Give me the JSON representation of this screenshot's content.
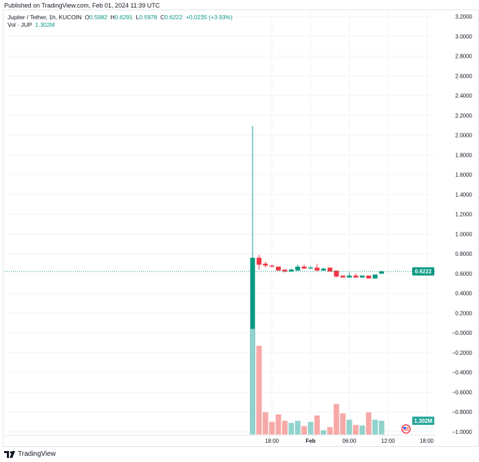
{
  "published": "Published on TradingView.com, Feb 01, 2024 11:39 UTC",
  "legend": {
    "symbol": "Jupiter / Tether, 1h, KUCOIN",
    "o_label": "O",
    "o": "0.5982",
    "h_label": "H",
    "h": "0.6291",
    "l_label": "L",
    "l": "0.5978",
    "c_label": "C",
    "c": "0.6222",
    "change": "+0.0235 (+3.93%)",
    "vol_label": "Vol · JUP",
    "vol": "1.302M"
  },
  "footer": {
    "brand": "TradingView"
  },
  "colors": {
    "up": "#089981",
    "down": "#f23645",
    "vol_up": "#92d2cc",
    "vol_down": "#f7a9a7"
  },
  "chart_data": {
    "type": "candlestick",
    "title": "Jupiter / Tether, 1h, KUCOIN",
    "y_ticks": [
      "3.2000",
      "3.0000",
      "2.8000",
      "2.6000",
      "2.4000",
      "2.2000",
      "2.0000",
      "1.8000",
      "1.6000",
      "1.4000",
      "1.2000",
      "1.0000",
      "0.8000",
      "0.6000",
      "0.4000",
      "0.2000",
      "−0.0000",
      "−0.2000",
      "−0.4000",
      "−0.6000",
      "−0.8000",
      "−1.0000"
    ],
    "ylim": [
      -1.0,
      3.2
    ],
    "x_ticks": [
      "18:00",
      "Feb",
      "06:00",
      "12:00",
      "18:00"
    ],
    "x_tick_hours": [
      18,
      24,
      30,
      36,
      42
    ],
    "first_hour": 15,
    "last_price_label": "0.6222",
    "last_volume_label": "1.302M",
    "candles": [
      [
        0.04,
        2.09,
        0.04,
        0.76
      ],
      [
        0.76,
        0.79,
        0.64,
        0.69
      ],
      [
        0.7,
        0.72,
        0.66,
        0.68
      ],
      [
        0.68,
        0.69,
        0.66,
        0.67
      ],
      [
        0.67,
        0.67,
        0.63,
        0.63
      ],
      [
        0.64,
        0.64,
        0.61,
        0.62
      ],
      [
        0.62,
        0.65,
        0.62,
        0.64
      ],
      [
        0.63,
        0.69,
        0.63,
        0.67
      ],
      [
        0.67,
        0.69,
        0.65,
        0.65
      ],
      [
        0.65,
        0.68,
        0.65,
        0.66
      ],
      [
        0.66,
        0.7,
        0.62,
        0.63
      ],
      [
        0.63,
        0.66,
        0.63,
        0.65
      ],
      [
        0.66,
        0.66,
        0.62,
        0.62
      ],
      [
        0.63,
        0.63,
        0.56,
        0.57
      ],
      [
        0.58,
        0.58,
        0.56,
        0.56
      ],
      [
        0.56,
        0.61,
        0.56,
        0.58
      ],
      [
        0.58,
        0.6,
        0.56,
        0.56
      ],
      [
        0.56,
        0.58,
        0.56,
        0.58
      ],
      [
        0.58,
        0.58,
        0.55,
        0.55
      ],
      [
        0.55,
        0.59,
        0.55,
        0.59
      ],
      [
        0.5982,
        0.6291,
        0.5978,
        0.6222
      ]
    ],
    "volumes_m": [
      10.0,
      8.4,
      2.1,
      1.2,
      1.9,
      1.3,
      1.1,
      1.3,
      0.8,
      1.2,
      1.8,
      0.4,
      0.7,
      2.9,
      2.0,
      1.4,
      0.9,
      0.85,
      2.1,
      1.4,
      1.302
    ]
  }
}
